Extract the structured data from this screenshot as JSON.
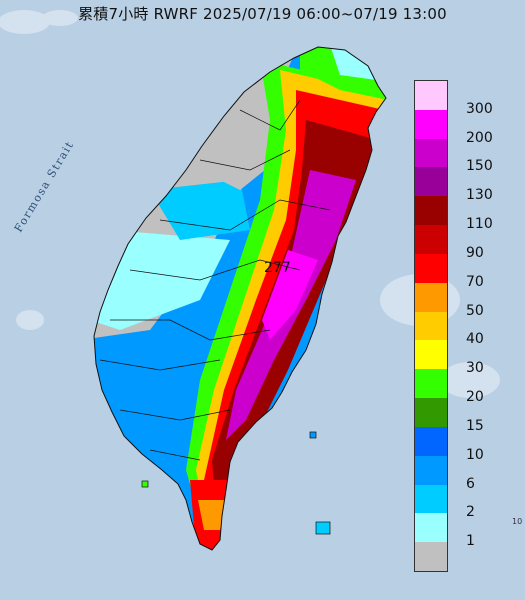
{
  "title": "累積7小時 RWRF 2025/07/19 06:00~07/19 13:00",
  "strait_label": "Formosa Strait",
  "peak_value": "277",
  "corner_mark": "10",
  "legend": [
    {
      "label": "300",
      "color": "#ffc8ff"
    },
    {
      "label": "200",
      "color": "#ff00ff"
    },
    {
      "label": "150",
      "color": "#cc00cc"
    },
    {
      "label": "130",
      "color": "#990099"
    },
    {
      "label": "110",
      "color": "#990000"
    },
    {
      "label": "90",
      "color": "#cc0000"
    },
    {
      "label": "70",
      "color": "#ff0000"
    },
    {
      "label": "50",
      "color": "#ff9900"
    },
    {
      "label": "40",
      "color": "#ffcc00"
    },
    {
      "label": "30",
      "color": "#ffff00"
    },
    {
      "label": "20",
      "color": "#33ff00"
    },
    {
      "label": "15",
      "color": "#339900"
    },
    {
      "label": "10",
      "color": "#0066ff"
    },
    {
      "label": "6",
      "color": "#0099ff"
    },
    {
      "label": "2",
      "color": "#00ccff"
    },
    {
      "label": "1",
      "color": "#99ffff"
    },
    {
      "label": "",
      "color": "#c0c0c0"
    }
  ],
  "colors": {
    "sea": "#b9cfe4",
    "dry": "#c0c0c0"
  }
}
